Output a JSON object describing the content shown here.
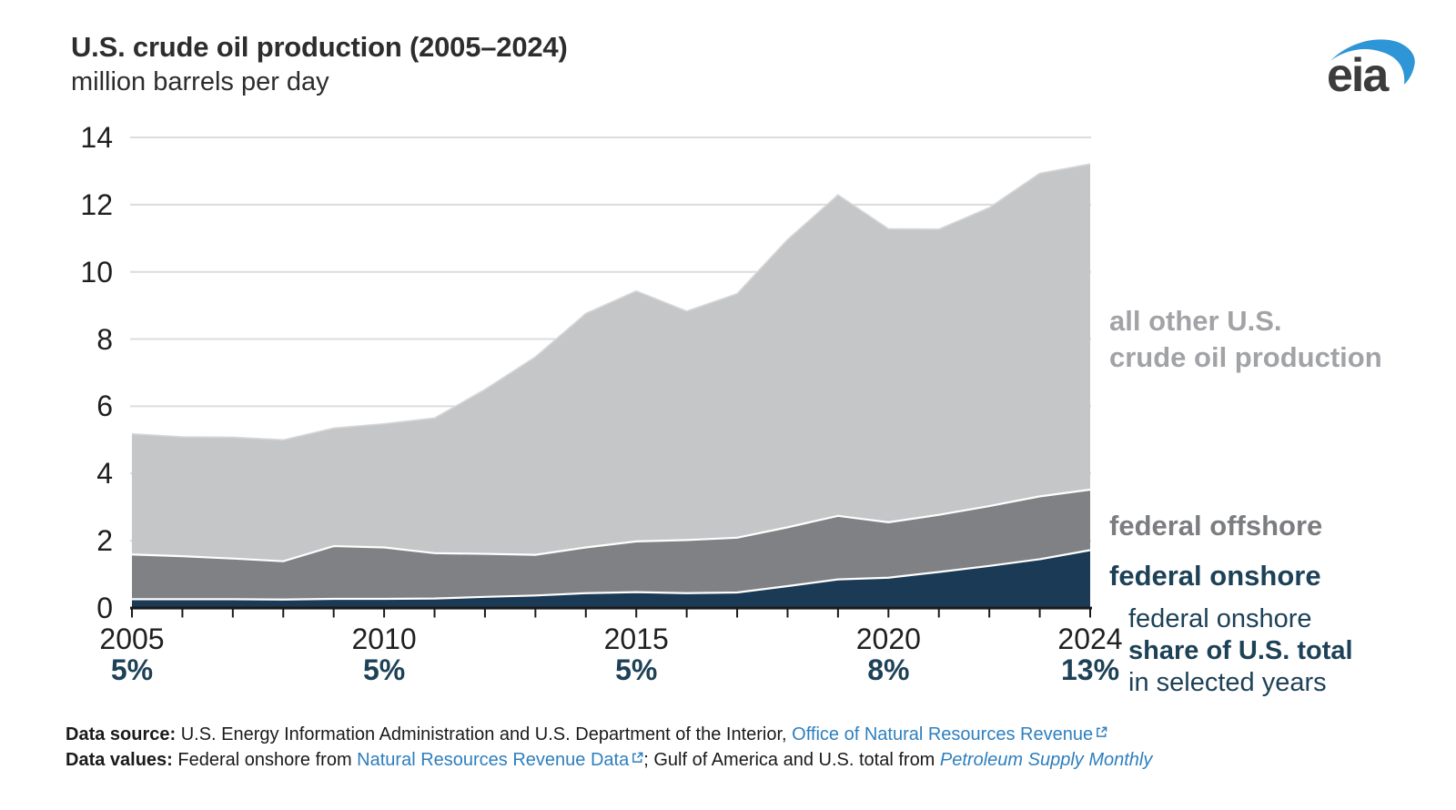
{
  "header": {
    "title": "U.S. crude oil production (2005–2024)",
    "subtitle": "million barrels per day"
  },
  "logo": {
    "text": "eia",
    "swoosh_color": "#2e95d6",
    "text_color": "#3c3c3c"
  },
  "chart_data": {
    "type": "area",
    "stacked": true,
    "title": "U.S. crude oil production (2005–2024)",
    "ylabel": "million barrels per day",
    "x": [
      2005,
      2006,
      2007,
      2008,
      2009,
      2010,
      2011,
      2012,
      2013,
      2014,
      2015,
      2016,
      2017,
      2018,
      2019,
      2020,
      2021,
      2022,
      2023,
      2024
    ],
    "series": [
      {
        "name": "federal onshore",
        "color": "#1b3a55",
        "values": [
          0.26,
          0.26,
          0.26,
          0.25,
          0.27,
          0.27,
          0.28,
          0.33,
          0.37,
          0.44,
          0.47,
          0.44,
          0.46,
          0.65,
          0.85,
          0.9,
          1.07,
          1.25,
          1.45,
          1.72
        ]
      },
      {
        "name": "federal offshore",
        "color": "#808184",
        "values": [
          1.33,
          1.28,
          1.21,
          1.14,
          1.57,
          1.53,
          1.35,
          1.28,
          1.21,
          1.36,
          1.51,
          1.58,
          1.63,
          1.75,
          1.89,
          1.65,
          1.7,
          1.78,
          1.87,
          1.8
        ]
      },
      {
        "name": "all other U.S. crude oil production",
        "color": "#c5c6c8",
        "values": [
          3.59,
          3.55,
          3.61,
          3.61,
          3.51,
          3.68,
          4.02,
          4.89,
          5.89,
          6.96,
          7.45,
          6.81,
          7.26,
          8.56,
          9.55,
          8.73,
          8.5,
          8.88,
          9.61,
          9.69
        ]
      }
    ],
    "total": [
      5.18,
      5.09,
      5.08,
      5.0,
      5.35,
      5.48,
      5.65,
      6.5,
      7.47,
      8.76,
      9.43,
      8.83,
      9.35,
      10.96,
      12.29,
      11.28,
      11.27,
      11.91,
      12.93,
      13.21
    ],
    "ylim": [
      0,
      14
    ],
    "yticks": [
      0,
      2,
      4,
      6,
      8,
      10,
      12,
      14
    ],
    "grid": "horizontal",
    "legend_position": "right-of-plot",
    "share_of_total_labels": [
      {
        "year": "2005",
        "share": "5%"
      },
      {
        "year": "2010",
        "share": "5%"
      },
      {
        "year": "2015",
        "share": "5%"
      },
      {
        "year": "2020",
        "share": "8%"
      },
      {
        "year": "2024",
        "share": "13%"
      }
    ]
  },
  "legend": {
    "all_other_line1": "all other U.S.",
    "all_other_line2": "crude oil production",
    "offshore": "federal offshore",
    "onshore": "federal onshore"
  },
  "share_note": {
    "line1": "federal onshore",
    "line2": "share of U.S. total",
    "line3": "in selected years"
  },
  "footer": {
    "line1_label": "Data source:",
    "line1_text": " U.S. Energy Information Administration and U.S. Department of the Interior, ",
    "line1_link": "Office of Natural Resources Revenue",
    "line2_label": "Data values:",
    "line2_text1": " Federal onshore from ",
    "line2_link1": "Natural Resources Revenue Data",
    "line2_text2": "; Gulf of America and U.S. total from ",
    "line2_link2": "Petroleum Supply Monthly"
  },
  "colors": {
    "navy_area": "#1b3a55",
    "gray_area": "#808184",
    "light_gray_area": "#c5c6c8",
    "navy_text": "#1d4157",
    "gridline": "#dcdcdc",
    "axis": "#1a1a1a",
    "link_blue": "#2e7fbe",
    "logo_blue": "#2e95d6"
  }
}
